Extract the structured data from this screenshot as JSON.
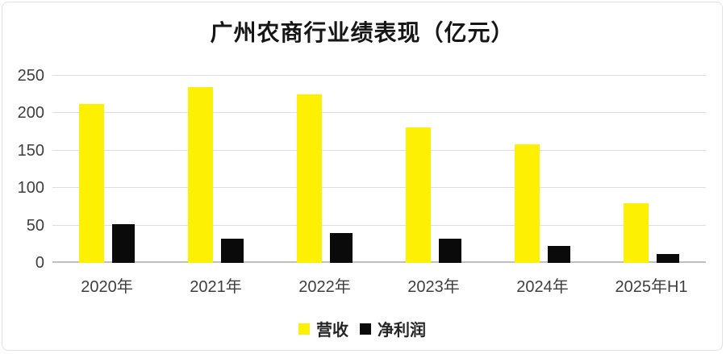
{
  "title": "广州农商行业绩表现（亿元）",
  "chart_data": {
    "type": "bar",
    "title": "广州农商行业绩表现（亿元）",
    "categories": [
      "2020年",
      "2021年",
      "2022年",
      "2023年",
      "2024年",
      "2025年H1"
    ],
    "series": [
      {
        "name": "营收",
        "color": "#fdf003",
        "values": [
          212,
          235,
          225,
          181,
          158,
          80
        ]
      },
      {
        "name": "净利润",
        "color": "#0a0a0a",
        "values": [
          52,
          32,
          40,
          32,
          23,
          12
        ]
      }
    ],
    "xlabel": "",
    "ylabel": "",
    "ylim": [
      0,
      250
    ],
    "yticks": [
      0,
      50,
      100,
      150,
      200,
      250
    ],
    "grid": true,
    "legend_position": "bottom"
  },
  "colors": {
    "revenue_bar": "#fdf003",
    "profit_bar": "#0a0a0a",
    "gridline": "#dedede",
    "axis_text": "#3f3f3f",
    "title_text": "#161616",
    "card_border": "#e2e2e2"
  }
}
